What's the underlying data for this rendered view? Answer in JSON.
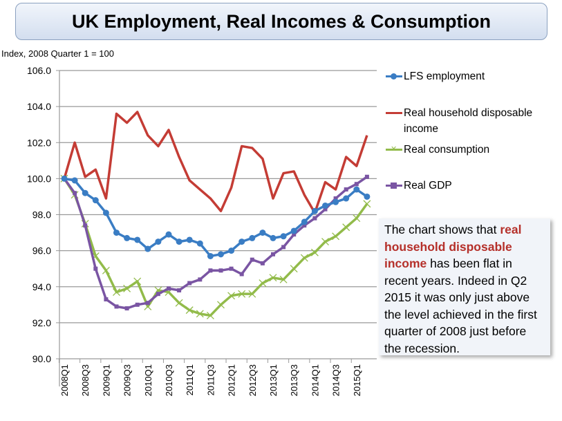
{
  "title": "UK Employment, Real Incomes & Consumption",
  "note": {
    "pre": "The chart shows that ",
    "bold": "real household disposable income",
    "post": " has been flat in recent years. Indeed in Q2 2015 it was only just above the level achieved in the first quarter of 2008 just before the recession."
  },
  "chart_data": {
    "type": "line",
    "ylabel": "Index, 2008 Quarter 1 = 100",
    "ylim": [
      90,
      106
    ],
    "yticks": [
      "90.0",
      "92.0",
      "94.0",
      "96.0",
      "98.0",
      "100.0",
      "102.0",
      "104.0",
      "106.0"
    ],
    "x": [
      "2008Q1",
      "2008Q2",
      "2008Q3",
      "2008Q4",
      "2009Q1",
      "2009Q2",
      "2009Q3",
      "2009Q4",
      "2010Q1",
      "2010Q2",
      "2010Q3",
      "2010Q4",
      "2011Q1",
      "2011Q2",
      "2011Q3",
      "2011Q4",
      "2012Q1",
      "2012Q2",
      "2012Q3",
      "2012Q4",
      "2013Q1",
      "2013Q2",
      "2013Q3",
      "2013Q4",
      "2014Q1",
      "2014Q2",
      "2014Q3",
      "2014Q4",
      "2015Q1",
      "2015Q2"
    ],
    "xticks": [
      "2008Q1",
      "2008Q3",
      "2009Q1",
      "2009Q3",
      "2010Q1",
      "2010Q3",
      "2011Q1",
      "2011Q3",
      "2012Q1",
      "2012Q3",
      "2013Q1",
      "2013Q3",
      "2014Q1",
      "2014Q3",
      "2015Q1"
    ],
    "grid": true,
    "legend": "right",
    "series": [
      {
        "name": "LFS employment",
        "color": "#3a7dc4",
        "marker": "circle",
        "values": [
          100.0,
          99.9,
          99.2,
          98.8,
          98.1,
          97.0,
          96.7,
          96.6,
          96.1,
          96.5,
          96.9,
          96.5,
          96.6,
          96.4,
          95.7,
          95.8,
          96.0,
          96.5,
          96.7,
          97.0,
          96.7,
          96.8,
          97.1,
          97.6,
          98.2,
          98.5,
          98.7,
          98.9,
          99.4,
          99.0
        ]
      },
      {
        "name": "Real household disposable income",
        "color": "#c43c35",
        "marker": "none",
        "values": [
          100.0,
          102.0,
          100.1,
          100.5,
          98.9,
          103.6,
          103.1,
          103.7,
          102.4,
          101.8,
          102.7,
          101.2,
          99.9,
          99.4,
          98.9,
          98.2,
          99.5,
          101.8,
          101.7,
          101.1,
          98.9,
          100.3,
          100.4,
          99.1,
          98.1,
          99.8,
          99.4,
          101.2,
          100.7,
          102.4
        ]
      },
      {
        "name": "Real consumption",
        "color": "#92bb4a",
        "marker": "x",
        "values": [
          100.0,
          99.1,
          97.5,
          95.7,
          94.9,
          93.7,
          93.9,
          94.3,
          92.9,
          93.8,
          93.7,
          93.1,
          92.7,
          92.5,
          92.4,
          93.0,
          93.5,
          93.6,
          93.6,
          94.2,
          94.5,
          94.4,
          95.0,
          95.6,
          95.9,
          96.5,
          96.8,
          97.3,
          97.8,
          98.6
        ]
      },
      {
        "name": "Real GDP",
        "color": "#7a55a3",
        "marker": "square",
        "values": [
          100.0,
          99.2,
          97.4,
          95.0,
          93.3,
          92.9,
          92.8,
          93.0,
          93.1,
          93.6,
          93.9,
          93.8,
          94.2,
          94.4,
          94.9,
          94.9,
          95.0,
          94.7,
          95.5,
          95.3,
          95.8,
          96.2,
          96.9,
          97.4,
          97.8,
          98.3,
          98.9,
          99.4,
          99.7,
          100.1
        ]
      }
    ]
  }
}
